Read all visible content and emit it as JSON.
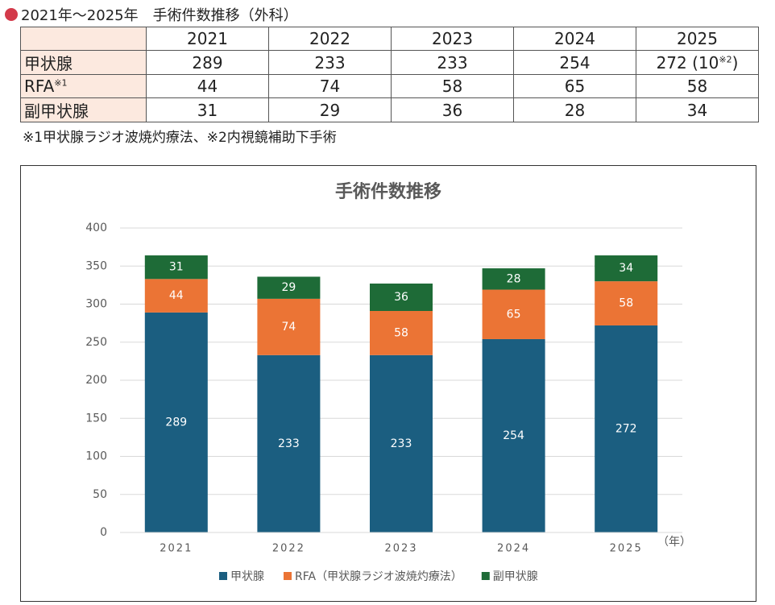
{
  "header": {
    "title": "2021年〜2025年　手術件数推移（外科）"
  },
  "table": {
    "columns": [
      "2021",
      "2022",
      "2023",
      "2024",
      "2025"
    ],
    "rows": [
      {
        "label": "甲状腺",
        "cells": [
          289,
          233,
          233,
          254,
          {
            "text": "272 (10",
            "note": "※2",
            "close": ")"
          }
        ]
      },
      {
        "label": "RFA",
        "note": "※1",
        "cells": [
          44,
          74,
          58,
          65,
          58
        ]
      },
      {
        "label": "副甲状腺",
        "cells": [
          31,
          29,
          36,
          28,
          34
        ]
      }
    ]
  },
  "footnote": "※1甲状腺ラジオ波焼灼療法、※2内視鏡補助下手術",
  "chart_data": {
    "type": "bar",
    "stacked": true,
    "title": "手術件数推移",
    "categories": [
      "2021",
      "2022",
      "2023",
      "2024",
      "2025"
    ],
    "x_unit": "（年）",
    "series": [
      {
        "name": "甲状腺",
        "color": "#1b5e80",
        "values": [
          289,
          233,
          233,
          254,
          272
        ]
      },
      {
        "name": "RFA（甲状腺ラジオ波焼灼療法）",
        "color": "#eb7435",
        "values": [
          44,
          74,
          58,
          65,
          58
        ]
      },
      {
        "name": "副甲状腺",
        "color": "#1e6b37",
        "values": [
          31,
          29,
          36,
          28,
          34
        ]
      }
    ],
    "ylim": [
      0,
      400
    ],
    "yticks": [
      0,
      50,
      100,
      150,
      200,
      250,
      300,
      350,
      400
    ],
    "grid": true
  }
}
